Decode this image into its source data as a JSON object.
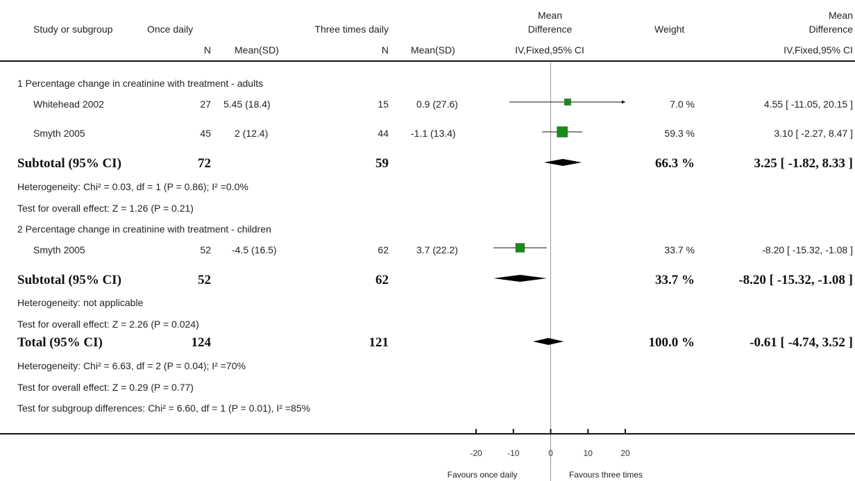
{
  "header": {
    "study": "Study or subgroup",
    "group1": "Once daily",
    "group2": "Three times daily",
    "md_plot_1": "Mean",
    "md_plot_2": "Difference",
    "weight": "Weight",
    "md_1": "Mean",
    "md_2": "Difference",
    "n1": "N",
    "mean1": "Mean(SD)",
    "n2": "N",
    "mean2": "Mean(SD)",
    "plot_method": "IV,Fixed,95% CI",
    "md_method": "IV,Fixed,95% CI"
  },
  "groups": [
    {
      "title": "1 Percentage change in creatinine with treatment - adults",
      "studies": [
        {
          "name": "Whitehead 2002",
          "n1": "27",
          "mean1": "5.45 (18.4)",
          "n2": "15",
          "mean2": "0.9 (27.6)",
          "weight": "7.0 %",
          "ci": "4.55 [ -11.05, 20.15 ]"
        },
        {
          "name": "Smyth 2005",
          "n1": "45",
          "mean1": "2 (12.4)",
          "n2": "44",
          "mean2": "-1.1 (13.4)",
          "weight": "59.3 %",
          "ci": "3.10 [ -2.27, 8.47 ]"
        }
      ],
      "subtotal": {
        "label": "Subtotal (95% CI)",
        "n1": "72",
        "n2": "59",
        "weight": "66.3 %",
        "ci": "3.25 [ -1.82, 8.33 ]"
      },
      "heterogeneity": "Heterogeneity: Chi² = 0.03, df = 1 (P = 0.86); I² =0.0%",
      "overall": "Test for overall effect: Z = 1.26 (P = 0.21)"
    },
    {
      "title": "2 Percentage change in creatinine with treatment - children",
      "studies": [
        {
          "name": "Smyth 2005",
          "n1": "52",
          "mean1": "-4.5 (16.5)",
          "n2": "62",
          "mean2": "3.7 (22.2)",
          "weight": "33.7 %",
          "ci": "-8.20 [ -15.32, -1.08 ]"
        }
      ],
      "subtotal": {
        "label": "Subtotal (95% CI)",
        "n1": "52",
        "n2": "62",
        "weight": "33.7 %",
        "ci": "-8.20 [ -15.32, -1.08 ]"
      },
      "heterogeneity": "Heterogeneity: not applicable",
      "overall": "Test for overall effect: Z = 2.26 (P = 0.024)"
    }
  ],
  "total": {
    "label": "Total (95% CI)",
    "n1": "124",
    "n2": "121",
    "weight": "100.0 %",
    "ci": "-0.61 [ -4.74, 3.52 ]",
    "heterogeneity": "Heterogeneity: Chi² = 6.63, df = 2 (P = 0.04); I² =70%",
    "overall": "Test for overall effect: Z = 0.29 (P = 0.77)",
    "subgroup": "Test for subgroup differences: Chi² = 6.60, df = 1 (P = 0.01), I² =85%"
  },
  "axis": {
    "favours_left": "Favours once daily",
    "favours_right": "Favours three times"
  },
  "colors": {
    "marker": "#1a8a1a",
    "line": "#111111",
    "zero_line": "#999999"
  },
  "chart_data": {
    "type": "forest",
    "xlim": [
      -20,
      20
    ],
    "xticks": [
      -20,
      -10,
      0,
      10,
      20
    ],
    "xtick_labels": [
      "-20",
      "-10",
      "0",
      "10",
      "20"
    ],
    "studies": [
      {
        "label": "Whitehead 2002",
        "md": 4.55,
        "lo": -11.05,
        "hi": 20.15,
        "weight": 7.0
      },
      {
        "label": "Smyth 2005",
        "md": 3.1,
        "lo": -2.27,
        "hi": 8.47,
        "weight": 59.3
      },
      {
        "label": "Smyth 2005",
        "md": -8.2,
        "lo": -15.32,
        "hi": -1.08,
        "weight": 33.7
      }
    ],
    "pooled": [
      {
        "label": "Subtotal (95% CI)",
        "md": 3.25,
        "lo": -1.82,
        "hi": 8.33
      },
      {
        "label": "Subtotal (95% CI)",
        "md": -8.2,
        "lo": -15.32,
        "hi": -1.08
      },
      {
        "label": "Total (95% CI)",
        "md": -0.61,
        "lo": -4.74,
        "hi": 3.52
      }
    ]
  }
}
